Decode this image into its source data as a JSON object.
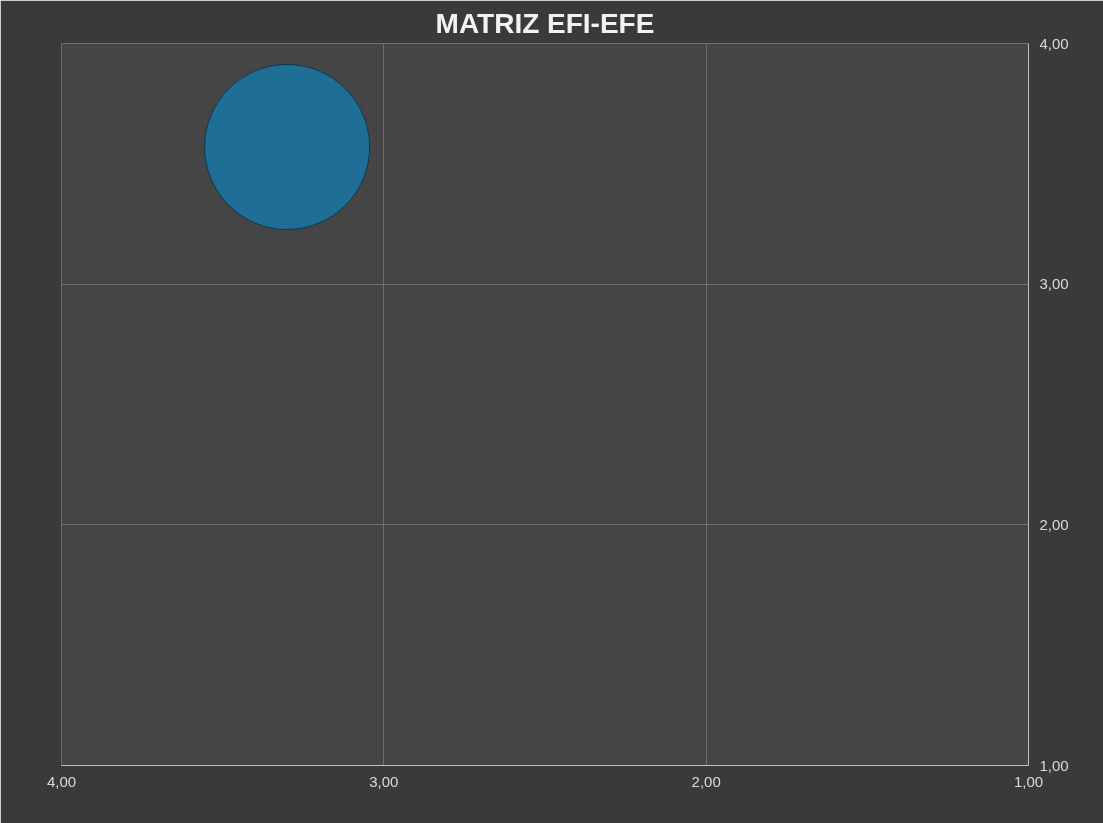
{
  "chart_data": {
    "type": "bubble",
    "title": "MATRIZ EFI-EFE",
    "x": [
      3.3
    ],
    "values": [
      3.57
    ],
    "sizes": [
      1
    ],
    "color": "#1f6e95",
    "xlim": [
      4,
      1
    ],
    "ylim": [
      1,
      4
    ],
    "xticks": [
      {
        "value": 4,
        "label": "4,00"
      },
      {
        "value": 3,
        "label": "3,00"
      },
      {
        "value": 2,
        "label": "2,00"
      },
      {
        "value": 1,
        "label": "1,00"
      }
    ],
    "yticks": [
      {
        "value": 1,
        "label": "1,00"
      },
      {
        "value": 2,
        "label": "2,00"
      },
      {
        "value": 3,
        "label": "3,00"
      },
      {
        "value": 4,
        "label": "4,00"
      }
    ],
    "grid": true
  }
}
